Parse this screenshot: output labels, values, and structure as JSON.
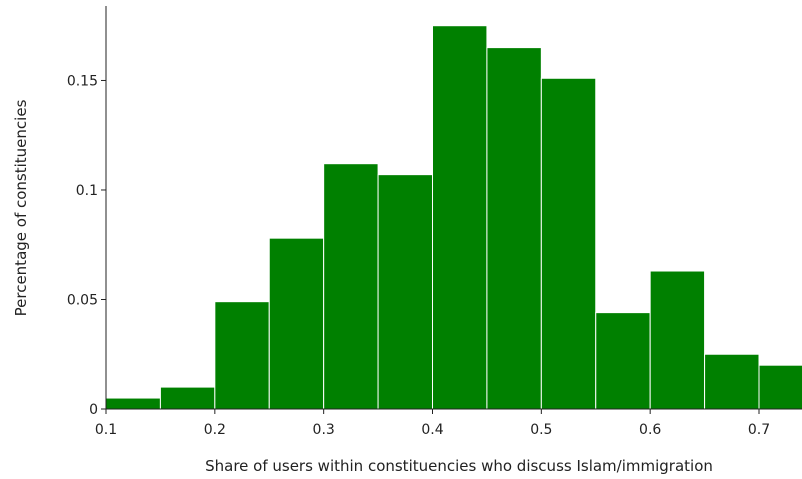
{
  "chart_data": {
    "type": "bar",
    "subtype": "histogram",
    "title": "",
    "xlabel": "Share of users within constituencies who discuss Islam/immigration",
    "ylabel": "Percentage of constituencies",
    "bar_color": "#008000",
    "xlim": [
      0.1,
      0.75
    ],
    "ylim": [
      0,
      0.184
    ],
    "x_ticks": [
      0.1,
      0.2,
      0.3,
      0.4,
      0.5,
      0.6,
      0.7
    ],
    "x_tick_labels": [
      "0.1",
      "0.2",
      "0.3",
      "0.4",
      "0.5",
      "0.6",
      "0.7"
    ],
    "y_ticks": [
      0,
      0.05,
      0.1,
      0.15
    ],
    "y_tick_labels": [
      "0",
      "0.05",
      "0.1",
      "0.15"
    ],
    "bins": [
      {
        "start": 0.1,
        "end": 0.15,
        "value": 0.005
      },
      {
        "start": 0.15,
        "end": 0.2,
        "value": 0.01
      },
      {
        "start": 0.2,
        "end": 0.25,
        "value": 0.049
      },
      {
        "start": 0.25,
        "end": 0.3,
        "value": 0.078
      },
      {
        "start": 0.3,
        "end": 0.35,
        "value": 0.112
      },
      {
        "start": 0.35,
        "end": 0.4,
        "value": 0.107
      },
      {
        "start": 0.4,
        "end": 0.45,
        "value": 0.175
      },
      {
        "start": 0.45,
        "end": 0.5,
        "value": 0.165
      },
      {
        "start": 0.5,
        "end": 0.55,
        "value": 0.151
      },
      {
        "start": 0.55,
        "end": 0.6,
        "value": 0.044
      },
      {
        "start": 0.6,
        "end": 0.65,
        "value": 0.063
      },
      {
        "start": 0.65,
        "end": 0.7,
        "value": 0.025
      },
      {
        "start": 0.7,
        "end": 0.75,
        "value": 0.02
      }
    ],
    "grid": false,
    "legend": "none"
  }
}
